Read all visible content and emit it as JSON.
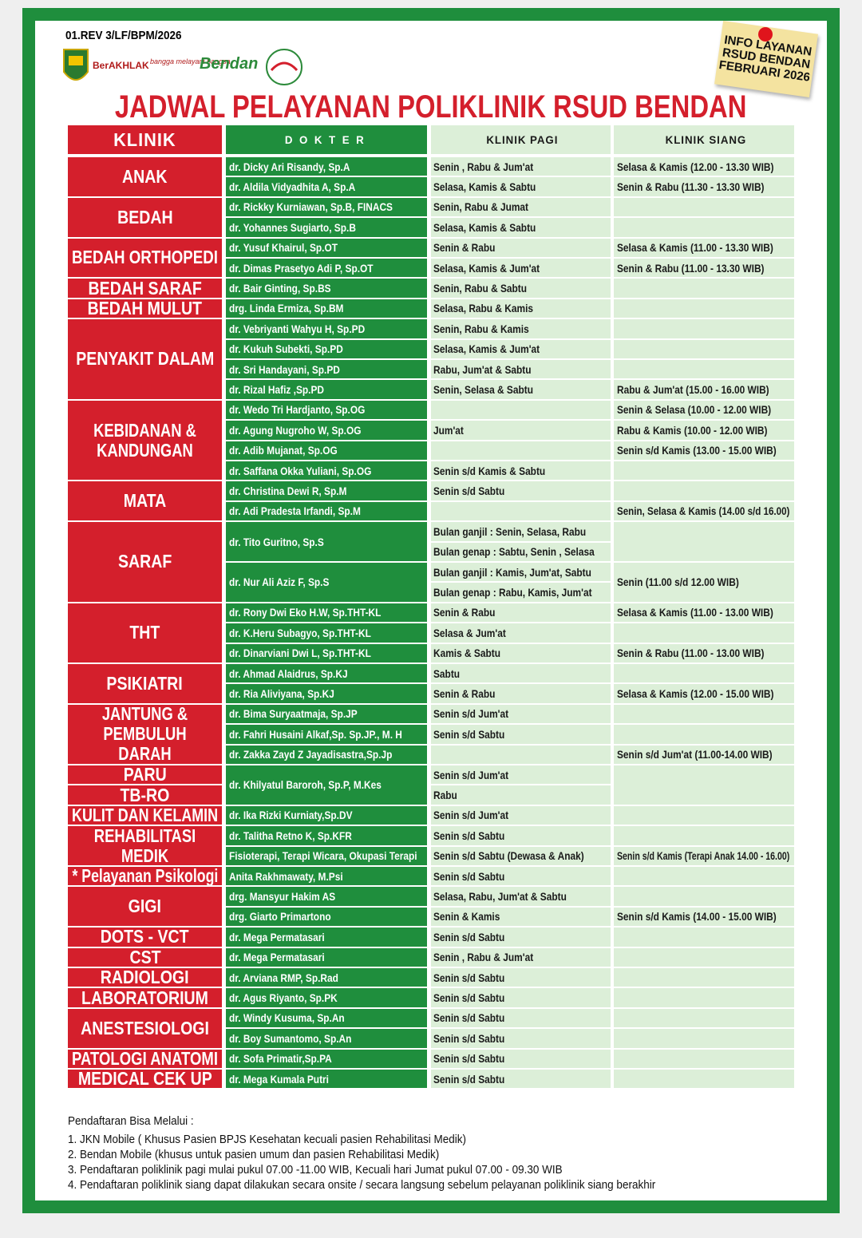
{
  "header": {
    "code": "01.REV 3/LF/BPM/2026",
    "logos": [
      "BerAKHLAK",
      "bangga melayani bangsa",
      "Bendan"
    ],
    "note": [
      "INFO LAYANAN",
      "RSUD BENDAN",
      "FEBRUARI 2026"
    ],
    "title": "JADWAL PELAYANAN POLIKLINIK RSUD BENDAN"
  },
  "table": {
    "columns": [
      "KLINIK",
      "DOKTER",
      "KLINIK PAGI",
      "KLINIK SIANG"
    ],
    "clinics": [
      {
        "name": "ANAK",
        "rows": [
          {
            "doctor": "dr. Dicky Ari Risandy, Sp.A",
            "pagi": "Senin , Rabu & Jum'at",
            "siang": "Selasa & Kamis (12.00 - 13.30 WIB)"
          },
          {
            "doctor": "dr. Aldila Vidyadhita A, Sp.A",
            "pagi": "Selasa, Kamis & Sabtu",
            "siang": "Senin & Rabu (11.30 - 13.30 WIB)"
          }
        ]
      },
      {
        "name": "BEDAH",
        "rows": [
          {
            "doctor": "dr. Rickky Kurniawan, Sp.B, FINACS",
            "pagi": "Senin, Rabu & Jumat"
          },
          {
            "doctor": "dr. Yohannes Sugiarto, Sp.B",
            "pagi": "Selasa, Kamis & Sabtu"
          }
        ]
      },
      {
        "name": "BEDAH ORTHOPEDI",
        "rows": [
          {
            "doctor": "dr. Yusuf Khairul, Sp.OT",
            "pagi": "Senin & Rabu",
            "siang": "Selasa & Kamis (11.00 - 13.30 WIB)"
          },
          {
            "doctor": "dr. Dimas Prasetyo Adi P, Sp.OT",
            "pagi": "Selasa, Kamis & Jum'at",
            "siang": "Senin & Rabu (11.00 - 13.30 WIB)"
          }
        ]
      },
      {
        "name": "BEDAH SARAF",
        "rows": [
          {
            "doctor": "dr. Bair Ginting, Sp.BS",
            "pagi": "Senin, Rabu & Sabtu"
          }
        ]
      },
      {
        "name": "BEDAH MULUT",
        "rows": [
          {
            "doctor": "drg. Linda Ermiza, Sp.BM",
            "pagi": "Selasa, Rabu & Kamis"
          }
        ]
      },
      {
        "name": "PENYAKIT DALAM",
        "rows": [
          {
            "doctor": "dr. Vebriyanti Wahyu H, Sp.PD",
            "pagi": "Senin, Rabu & Kamis"
          },
          {
            "doctor": "dr. Kukuh Subekti, Sp.PD",
            "pagi": "Selasa, Kamis & Jum'at"
          },
          {
            "doctor": "dr. Sri Handayani, Sp.PD",
            "pagi": "Rabu, Jum'at & Sabtu"
          },
          {
            "doctor": "dr. Rizal Hafiz ,Sp.PD",
            "pagi": "Senin, Selasa & Sabtu",
            "siang": "Rabu & Jum'at (15.00 - 16.00 WIB)"
          }
        ]
      },
      {
        "name": "KEBIDANAN & KANDUNGAN",
        "rows": [
          {
            "doctor": "dr. Wedo Tri Hardjanto, Sp.OG",
            "siang": "Senin & Selasa (10.00 - 12.00 WIB)"
          },
          {
            "doctor": "dr. Agung Nugroho W, Sp.OG",
            "pagi": "Jum'at",
            "siang": "Rabu & Kamis (10.00 - 12.00 WIB)"
          },
          {
            "doctor": "dr. Adib Mujanat, Sp.OG",
            "siang": "Senin s/d Kamis (13.00 - 15.00 WIB)"
          },
          {
            "doctor": "dr. Saffana Okka Yuliani, Sp.OG",
            "pagi": "Senin s/d Kamis & Sabtu"
          }
        ]
      },
      {
        "name": "MATA",
        "rows": [
          {
            "doctor": "dr. Christina Dewi R, Sp.M",
            "pagi": "Senin s/d Sabtu"
          },
          {
            "doctor": "dr. Adi Pradesta Irfandi, Sp.M",
            "siang": "Senin, Selasa & Kamis (14.00 s/d 16.00)"
          }
        ]
      },
      {
        "name": "SARAF",
        "rows": [
          {
            "doctor": "dr. Tito Guritno, Sp.S",
            "pagi": [
              "Bulan ganjil : Senin, Selasa, Rabu",
              "Bulan genap : Sabtu, Senin , Selasa"
            ]
          },
          {
            "doctor": "dr. Nur Ali Aziz F, Sp.S",
            "pagi": [
              "Bulan ganjil : Kamis, Jum'at, Sabtu",
              "Bulan genap : Rabu, Kamis, Jum'at"
            ],
            "siang": "Senin (11.00 s/d 12.00 WIB)"
          }
        ]
      },
      {
        "name": "THT",
        "rows": [
          {
            "doctor": "dr. Rony Dwi Eko H.W, Sp.THT-KL",
            "pagi": "Senin & Rabu",
            "siang": "Selasa & Kamis (11.00 - 13.00 WIB)"
          },
          {
            "doctor": "dr. K.Heru Subagyo, Sp.THT-KL",
            "pagi": "Selasa & Jum'at"
          },
          {
            "doctor": "dr. Dinarviani Dwi L, Sp.THT-KL",
            "pagi": "Kamis & Sabtu",
            "siang": "Senin & Rabu (11.00 - 13.00 WIB)"
          }
        ]
      },
      {
        "name": "PSIKIATRI",
        "rows": [
          {
            "doctor": "dr. Ahmad Alaidrus, Sp.KJ",
            "pagi": "Sabtu"
          },
          {
            "doctor": "dr. Ria Aliviyana, Sp.KJ",
            "pagi": "Senin & Rabu",
            "siang": "Selasa & Kamis (12.00 - 15.00 WIB)"
          }
        ]
      },
      {
        "name": "JANTUNG & PEMBULUH DARAH",
        "rows": [
          {
            "doctor": "dr. Bima Suryaatmaja, Sp.JP",
            "pagi": "Senin s/d Jum'at"
          },
          {
            "doctor": "dr. Fahri Husaini Alkaf,Sp. Sp.JP., M. H",
            "pagi": "Senin s/d Sabtu"
          },
          {
            "doctor": "dr. Zakka Zayd Z Jayadisastra,Sp.Jp",
            "siang": "Senin s/d Jum'at (11.00-14.00 WIB)"
          }
        ]
      },
      {
        "name": [
          "PARU",
          "TB-RO"
        ],
        "rows": [
          {
            "doctor": "dr. Khilyatul Baroroh, Sp.P, M.Kes",
            "pagi": [
              "Senin s/d Jum'at",
              "Rabu"
            ]
          }
        ]
      },
      {
        "name": "KULIT DAN KELAMIN",
        "rows": [
          {
            "doctor": "dr. Ika Rizki Kurniaty,Sp.DV",
            "pagi": "Senin s/d Jum'at"
          }
        ]
      },
      {
        "name": "REHABILITASI MEDIK",
        "rows": [
          {
            "doctor": "dr. Talitha Retno K, Sp.KFR",
            "pagi": "Senin s/d Sabtu"
          },
          {
            "doctor": "Fisioterapi, Terapi Wicara, Okupasi Terapi",
            "pagi": "Senin s/d Sabtu (Dewasa & Anak)",
            "siang": "Senin s/d Kamis (Terapi Anak 14.00 - 16.00)"
          }
        ]
      },
      {
        "name": "* Pelayanan Psikologi",
        "rows": [
          {
            "doctor": "Anita Rakhmawaty, M.Psi",
            "pagi": "Senin s/d Sabtu"
          }
        ]
      },
      {
        "name": "GIGI",
        "rows": [
          {
            "doctor": "drg. Mansyur Hakim AS",
            "pagi": "Selasa, Rabu, Jum'at & Sabtu"
          },
          {
            "doctor": "drg. Giarto Primartono",
            "pagi": "Senin & Kamis",
            "siang": "Senin s/d Kamis (14.00 - 15.00 WIB)"
          }
        ]
      },
      {
        "name": "DOTS - VCT",
        "rows": [
          {
            "doctor": "dr. Mega Permatasari",
            "pagi": "Senin s/d Sabtu"
          }
        ]
      },
      {
        "name": "CST",
        "rows": [
          {
            "doctor": "dr. Mega Permatasari",
            "pagi": "Senin , Rabu & Jum'at"
          }
        ]
      },
      {
        "name": "RADIOLOGI",
        "rows": [
          {
            "doctor": "dr. Arviana RMP, Sp.Rad",
            "pagi": "Senin s/d Sabtu"
          }
        ]
      },
      {
        "name": "LABORATORIUM",
        "rows": [
          {
            "doctor": "dr. Agus Riyanto, Sp.PK",
            "pagi": "Senin s/d Sabtu"
          }
        ]
      },
      {
        "name": "ANESTESIOLOGI",
        "rows": [
          {
            "doctor": "dr. Windy Kusuma, Sp.An",
            "pagi": "Senin s/d Sabtu"
          },
          {
            "doctor": "dr. Boy Sumantomo, Sp.An",
            "pagi": "Senin s/d Sabtu"
          }
        ]
      },
      {
        "name": "PATOLOGI ANATOMI",
        "rows": [
          {
            "doctor": "dr. Sofa Primatir,Sp.PA",
            "pagi": "Senin s/d Sabtu"
          }
        ]
      },
      {
        "name": "MEDICAL CEK UP",
        "rows": [
          {
            "doctor": "dr. Mega Kumala Putri",
            "pagi": "Senin s/d Sabtu"
          }
        ]
      }
    ]
  },
  "footer": {
    "heading": "Pendaftaran Bisa Melalui :",
    "items": [
      "1. JKN Mobile ( Khusus Pasien BPJS Kesehatan kecuali pasien Rehabilitasi Medik)",
      "2. Bendan Mobile (khusus untuk pasien umum dan pasien Rehabilitasi Medik)",
      "3. Pendaftaran poliklinik pagi mulai pukul 07.00 -11.00 WIB, Kecuali hari Jumat pukul 07.00 - 09.30 WIB",
      "4. Pendaftaran poliklinik siang dapat dilakukan secara onsite / secara langsung sebelum pelayanan poliklinik siang berakhir"
    ]
  }
}
